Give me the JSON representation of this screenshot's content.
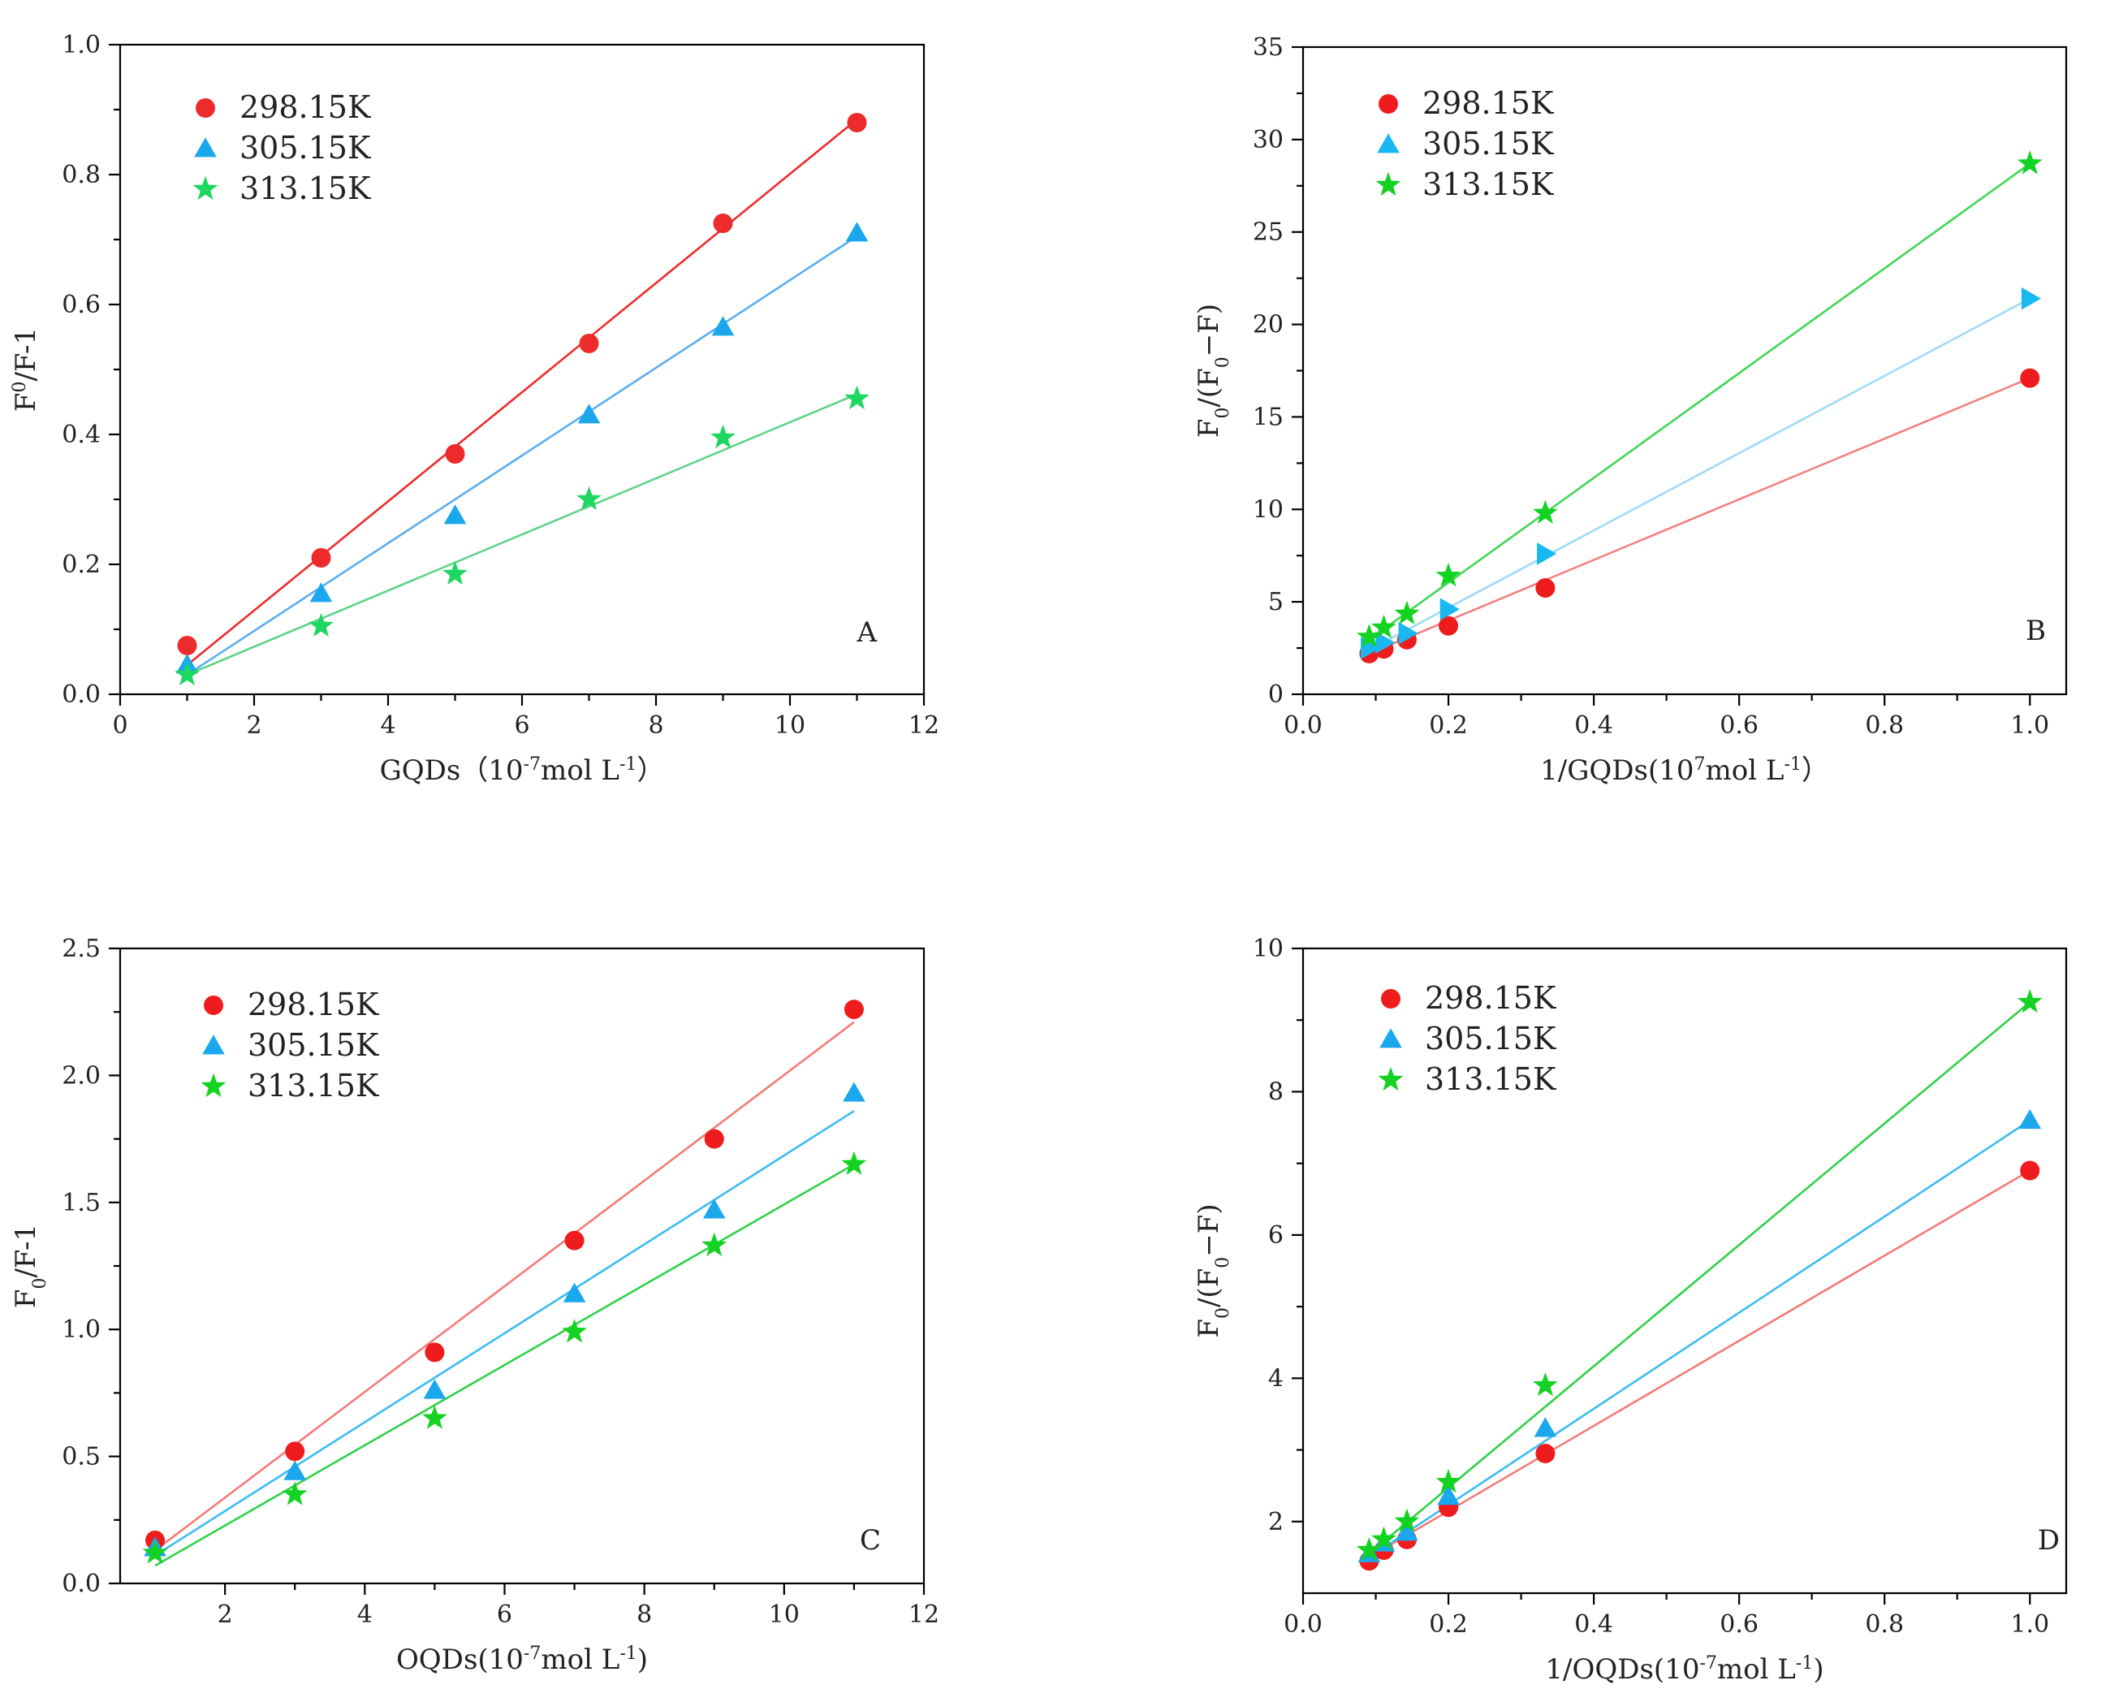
{
  "chart_data": [
    {
      "type": "scatter",
      "panel_label": "A",
      "xlabel": "GQDs（10",
      "xlabel_sup": "-7",
      "xlabel_tail": "mol L",
      "xlabel_sup2": "-1",
      "xlabel_end": "）",
      "ylabel": "F",
      "ylabel_mod": "0",
      "ylabel_mod_kind": "sup",
      "ylabel_tail": "/F-1",
      "xlim": [
        0,
        12
      ],
      "ylim": [
        0,
        1.0
      ],
      "xticks": [
        0,
        2,
        4,
        6,
        8,
        10,
        12
      ],
      "yticks": [
        0.0,
        0.2,
        0.4,
        0.6,
        0.8,
        1.0
      ],
      "xtick_labels": [
        "0",
        "2",
        "4",
        "6",
        "8",
        "10",
        "12"
      ],
      "ytick_labels": [
        "0.0",
        "0.2",
        "0.4",
        "0.6",
        "0.8",
        "1.0"
      ],
      "legend_position": "top-left",
      "series": [
        {
          "name": "298.15K",
          "marker": "circle",
          "color": "#ee2b2b",
          "line_color": "#ee2b2b",
          "x": [
            1,
            3,
            5,
            7,
            9,
            11
          ],
          "y": [
            0.075,
            0.21,
            0.37,
            0.54,
            0.725,
            0.88
          ],
          "fit": [
            [
              1,
              0.045
            ],
            [
              11,
              0.885
            ]
          ]
        },
        {
          "name": "305.15K",
          "marker": "triangle",
          "color": "#1aa7ec",
          "line_color": "#5aaef0",
          "x": [
            1,
            3,
            5,
            7,
            9,
            11
          ],
          "y": [
            0.045,
            0.155,
            0.275,
            0.43,
            0.565,
            0.71
          ],
          "fit": [
            [
              1,
              0.03
            ],
            [
              11,
              0.705
            ]
          ]
        },
        {
          "name": "313.15K",
          "marker": "star",
          "color": "#1ed760",
          "line_color": "#5fd38a",
          "x": [
            1,
            3,
            5,
            7,
            9,
            11
          ],
          "y": [
            0.03,
            0.105,
            0.185,
            0.3,
            0.395,
            0.455
          ],
          "fit": [
            [
              1,
              0.03
            ],
            [
              11,
              0.462
            ]
          ]
        }
      ]
    },
    {
      "type": "scatter",
      "panel_label": "B",
      "xlabel": "1/GQDs(10",
      "xlabel_sup": "7",
      "xlabel_tail": "mol L",
      "xlabel_sup2": "-1",
      "xlabel_end": "）",
      "ylabel": "F",
      "ylabel_mod": "0",
      "ylabel_mod_kind": "sub",
      "ylabel_tail": "/(F",
      "ylabel_mod2": "0",
      "ylabel_end": "−F)",
      "xlim": [
        0,
        1.05
      ],
      "ylim": [
        0,
        35
      ],
      "xticks": [
        0.0,
        0.2,
        0.4,
        0.6,
        0.8,
        1.0
      ],
      "yticks": [
        0,
        5,
        10,
        15,
        20,
        25,
        30,
        35
      ],
      "xtick_labels": [
        "0.0",
        "0.2",
        "0.4",
        "0.6",
        "0.8",
        "1.0"
      ],
      "ytick_labels": [
        "0",
        "5",
        "10",
        "15",
        "20",
        "25",
        "30",
        "35"
      ],
      "legend_position": "top-left",
      "series": [
        {
          "name": "298.15K",
          "marker": "circle",
          "color": "#ee1c1c",
          "line_color": "#f48080",
          "x": [
            0.0909,
            0.1111,
            0.1429,
            0.2,
            0.3333,
            1.0
          ],
          "y": [
            2.2,
            2.45,
            2.95,
            3.7,
            5.75,
            17.1
          ],
          "fit": [
            [
              0.0909,
              2.2
            ],
            [
              1.0,
              17.1
            ]
          ]
        },
        {
          "name": "305.15K",
          "marker": "triangle-right",
          "color": "#1ab8f2",
          "line_color": "#9bdcf6",
          "x": [
            0.0909,
            0.1111,
            0.1429,
            0.2,
            0.3333,
            1.0
          ],
          "y": [
            2.5,
            2.8,
            3.3,
            4.6,
            7.6,
            21.4
          ],
          "fit": [
            [
              0.0909,
              2.4
            ],
            [
              1.0,
              21.4
            ]
          ]
        },
        {
          "name": "313.15K",
          "marker": "star",
          "color": "#14d222",
          "line_color": "#3fd653",
          "x": [
            0.0909,
            0.1111,
            0.1429,
            0.2,
            0.3333,
            1.0
          ],
          "y": [
            3.1,
            3.6,
            4.35,
            6.4,
            9.8,
            28.7
          ],
          "fit": [
            [
              0.0909,
              2.95
            ],
            [
              1.0,
              28.7
            ]
          ]
        }
      ]
    },
    {
      "type": "scatter",
      "panel_label": "C",
      "xlabel": "OQDs(10",
      "xlabel_sup": "-7",
      "xlabel_tail": "mol L",
      "xlabel_sup2": "-1",
      "xlabel_end": ")",
      "ylabel": "F",
      "ylabel_mod": "0",
      "ylabel_mod_kind": "sub",
      "ylabel_tail": "/F-1",
      "xlim": [
        0.5,
        12
      ],
      "ylim": [
        0,
        2.5
      ],
      "xticks": [
        2,
        4,
        6,
        8,
        10,
        12
      ],
      "yticks": [
        0.0,
        0.5,
        1.0,
        1.5,
        2.0,
        2.5
      ],
      "xtick_labels": [
        "2",
        "4",
        "6",
        "8",
        "10",
        "12"
      ],
      "ytick_labels": [
        "0.0",
        "0.5",
        "1.0",
        "1.5",
        "2.0",
        "2.5"
      ],
      "legend_position": "top-left",
      "series": [
        {
          "name": "298.15K",
          "marker": "circle",
          "color": "#ee1c1c",
          "line_color": "#f47a7a",
          "x": [
            1,
            3,
            5,
            7,
            9,
            11
          ],
          "y": [
            0.17,
            0.52,
            0.91,
            1.35,
            1.75,
            2.26
          ],
          "fit": [
            [
              1,
              0.13
            ],
            [
              11,
              2.21
            ]
          ]
        },
        {
          "name": "305.15K",
          "marker": "triangle",
          "color": "#1aa7ec",
          "line_color": "#3cbcf2",
          "x": [
            1,
            3,
            5,
            7,
            9,
            11
          ],
          "y": [
            0.14,
            0.44,
            0.76,
            1.14,
            1.47,
            1.93
          ],
          "fit": [
            [
              1,
              0.11
            ],
            [
              11,
              1.86
            ]
          ]
        },
        {
          "name": "313.15K",
          "marker": "star",
          "color": "#14d222",
          "line_color": "#2fd14a",
          "x": [
            1,
            3,
            5,
            7,
            9,
            11
          ],
          "y": [
            0.12,
            0.35,
            0.65,
            0.99,
            1.33,
            1.65
          ],
          "fit": [
            [
              1,
              0.07
            ],
            [
              11,
              1.65
            ]
          ]
        }
      ]
    },
    {
      "type": "scatter",
      "panel_label": "D",
      "xlabel": "1/OQDs(10",
      "xlabel_sup": "-7",
      "xlabel_tail": "mol L",
      "xlabel_sup2": "-1",
      "xlabel_end": ")",
      "ylabel": "F",
      "ylabel_mod": "0",
      "ylabel_mod_kind": "sub",
      "ylabel_tail": "/(F",
      "ylabel_mod2": "0",
      "ylabel_end": "−F)",
      "xlim": [
        0,
        1.05
      ],
      "ylim": [
        1,
        10
      ],
      "xticks": [
        0.0,
        0.2,
        0.4,
        0.6,
        0.8,
        1.0
      ],
      "yticks": [
        2,
        4,
        6,
        8,
        10
      ],
      "xtick_labels": [
        "0.0",
        "0.2",
        "0.4",
        "0.6",
        "0.8",
        "1.0"
      ],
      "ytick_labels": [
        "2",
        "4",
        "6",
        "8",
        "10"
      ],
      "legend_position": "top-left",
      "series": [
        {
          "name": "298.15K",
          "marker": "circle",
          "color": "#ee1c1c",
          "line_color": "#f47a7a",
          "x": [
            0.0909,
            0.1111,
            0.1429,
            0.2,
            0.3333,
            1.0
          ],
          "y": [
            1.45,
            1.6,
            1.75,
            2.2,
            2.95,
            6.9
          ],
          "fit": [
            [
              0.0909,
              1.5
            ],
            [
              1.0,
              6.9
            ]
          ]
        },
        {
          "name": "305.15K",
          "marker": "triangle",
          "color": "#1aa7ec",
          "line_color": "#3cbcf2",
          "x": [
            0.0909,
            0.1111,
            0.1429,
            0.2,
            0.3333,
            1.0
          ],
          "y": [
            1.55,
            1.7,
            1.85,
            2.35,
            3.3,
            7.6
          ],
          "fit": [
            [
              0.0909,
              1.5
            ],
            [
              1.0,
              7.6
            ]
          ]
        },
        {
          "name": "313.15K",
          "marker": "star",
          "color": "#14d222",
          "line_color": "#2fd14a",
          "x": [
            0.0909,
            0.1111,
            0.1429,
            0.2,
            0.3333,
            1.0
          ],
          "y": [
            1.6,
            1.75,
            2.0,
            2.55,
            3.9,
            9.25
          ],
          "fit": [
            [
              0.0909,
              1.55
            ],
            [
              1.0,
              9.25
            ]
          ]
        }
      ]
    }
  ]
}
